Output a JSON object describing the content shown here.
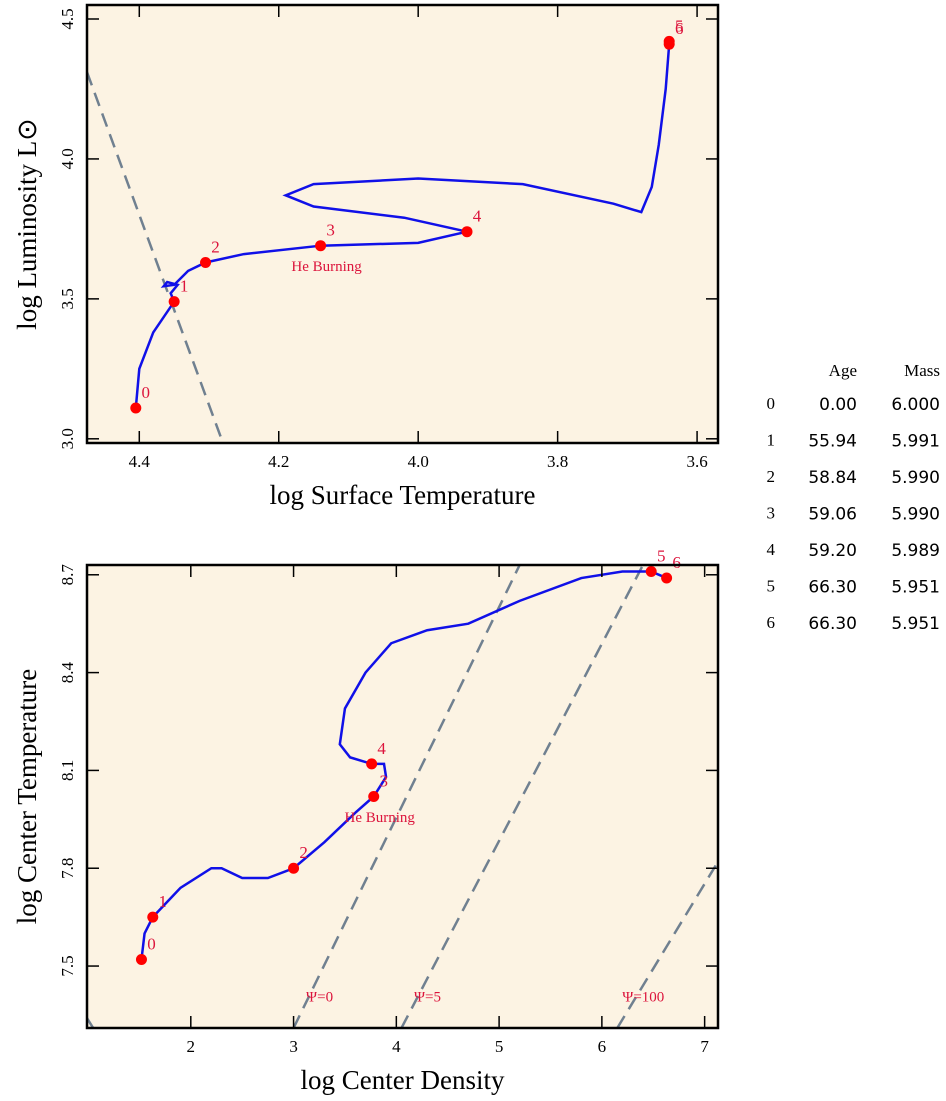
{
  "chart_data": [
    {
      "type": "track",
      "xlabel": "log Surface Temperature",
      "ylabel": "log Luminosity L⊙",
      "xlim": [
        4.475,
        3.57
      ],
      "ylim": [
        2.985,
        4.55
      ],
      "xticks": [
        4.4,
        4.2,
        {
          "value": 4,
          "label": "4.0"
        },
        3.8,
        3.6
      ],
      "yticks": [
        {
          "value": 3,
          "label": "3.0"
        },
        3.5,
        {
          "value": 4,
          "label": "4.0"
        },
        4.5
      ],
      "background": "#fcf3e3",
      "track": {
        "color": "#1010e8",
        "x": [
          4.405,
          4.4,
          4.38,
          4.35,
          4.355,
          4.345,
          4.36,
          4.365,
          4.35,
          4.33,
          4.305,
          4.25,
          4.14,
          4.0,
          3.93,
          4.02,
          4.15,
          4.19,
          4.15,
          4.0,
          3.85,
          3.72,
          3.68,
          3.665,
          3.655,
          3.645,
          3.64
        ],
        "y": [
          3.11,
          3.25,
          3.38,
          3.49,
          3.52,
          3.55,
          3.56,
          3.545,
          3.55,
          3.6,
          3.63,
          3.66,
          3.69,
          3.7,
          3.74,
          3.79,
          3.83,
          3.87,
          3.91,
          3.93,
          3.91,
          3.84,
          3.81,
          3.9,
          4.05,
          4.25,
          4.41
        ]
      },
      "points": {
        "color": "#ff0000",
        "labels": [
          "0",
          "1",
          "2",
          "3",
          "4",
          "5",
          "6"
        ],
        "x": [
          4.405,
          4.35,
          4.305,
          4.14,
          3.93,
          3.64,
          3.64
        ],
        "y": [
          3.11,
          3.49,
          3.63,
          3.69,
          3.74,
          4.42,
          4.41
        ]
      },
      "annotation": "He Burning",
      "guides": [
        {
          "color": "#708090",
          "x": [
            4.475,
            4.28
          ],
          "y": [
            4.31,
            2.985
          ]
        }
      ]
    },
    {
      "type": "track",
      "xlabel": "log Center Density",
      "ylabel": "log Center Temperature",
      "xlim": [
        0.99,
        7.13
      ],
      "ylim": [
        7.31,
        8.73
      ],
      "xticks": [
        2,
        3,
        4,
        5,
        6,
        7
      ],
      "yticks": [
        7.5,
        7.8,
        8.1,
        8.4,
        8.7
      ],
      "background": "#fcf3e3",
      "track": {
        "color": "#1010e8",
        "x": [
          1.52,
          1.55,
          1.63,
          1.9,
          2.2,
          2.3,
          2.5,
          2.75,
          3.0,
          3.3,
          3.6,
          3.78,
          3.9,
          3.88,
          3.76,
          3.55,
          3.45,
          3.5,
          3.7,
          3.95,
          4.3,
          4.7,
          5.2,
          5.8,
          6.2,
          6.48,
          6.63
        ],
        "y": [
          7.52,
          7.6,
          7.65,
          7.74,
          7.8,
          7.8,
          7.77,
          7.77,
          7.8,
          7.88,
          7.97,
          8.02,
          8.08,
          8.12,
          8.12,
          8.14,
          8.18,
          8.29,
          8.4,
          8.49,
          8.53,
          8.55,
          8.62,
          8.69,
          8.71,
          8.71,
          8.69
        ]
      },
      "points": {
        "color": "#ff0000",
        "labels": [
          "0",
          "1",
          "2",
          "3",
          "4",
          "5",
          "6"
        ],
        "x": [
          1.52,
          1.63,
          3.0,
          3.78,
          3.76,
          6.48,
          6.63
        ],
        "y": [
          7.52,
          7.65,
          7.8,
          8.02,
          8.12,
          8.71,
          8.69
        ]
      },
      "annotation": "He Burning",
      "guides": [
        {
          "color": "#708090",
          "label": "Ψ=0",
          "x": [
            3.0,
            5.2
          ],
          "y": [
            7.31,
            8.73
          ]
        },
        {
          "color": "#708090",
          "label": "Ψ=5",
          "x": [
            4.05,
            6.4
          ],
          "y": [
            7.31,
            8.73
          ]
        },
        {
          "color": "#708090",
          "label": "Ψ=100",
          "x": [
            6.15,
            7.13
          ],
          "y": [
            7.31,
            7.82
          ]
        },
        {
          "color": "#708090",
          "x": [
            0.99,
            1.05
          ],
          "y": [
            7.34,
            7.31
          ]
        }
      ]
    }
  ],
  "table": {
    "columns": [
      "Age",
      "Mass"
    ],
    "rows": [
      [
        "0",
        "0.00",
        "6.000"
      ],
      [
        "1",
        "55.94",
        "5.991"
      ],
      [
        "2",
        "58.84",
        "5.990"
      ],
      [
        "3",
        "59.06",
        "5.990"
      ],
      [
        "4",
        "59.20",
        "5.989"
      ],
      [
        "5",
        "66.30",
        "5.951"
      ],
      [
        "6",
        "66.30",
        "5.951"
      ]
    ]
  }
}
